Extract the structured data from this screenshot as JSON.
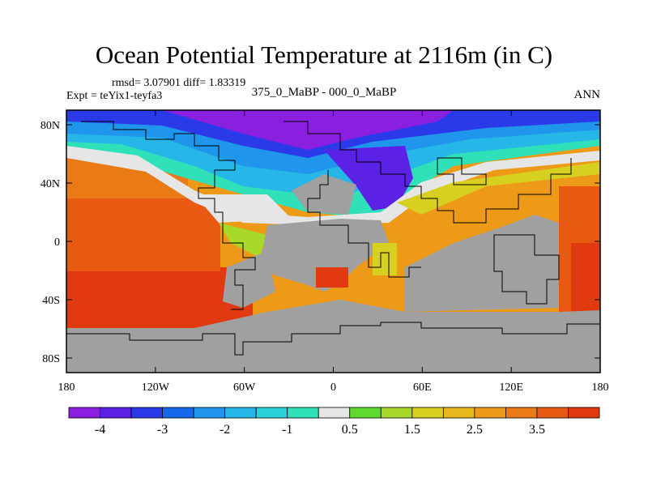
{
  "title": "Ocean Potential Temperature at 2116m (in C)",
  "stats_line": "rmsd= 3.07901 diff= 1.83319",
  "expt_line": "Expt = teYix1-teyfa3",
  "center_label": "375_0_MaBP - 000_0_MaBP",
  "right_label": "ANN",
  "lat_ticks": [
    {
      "value": 80,
      "label": "80N"
    },
    {
      "value": 40,
      "label": "40N"
    },
    {
      "value": 0,
      "label": "0"
    },
    {
      "value": -40,
      "label": "40S"
    },
    {
      "value": -80,
      "label": "80S"
    }
  ],
  "lon_ticks": [
    {
      "value": -180,
      "label": "180"
    },
    {
      "value": -120,
      "label": "120W"
    },
    {
      "value": -60,
      "label": "60W"
    },
    {
      "value": 0,
      "label": "0"
    },
    {
      "value": 60,
      "label": "60E"
    },
    {
      "value": 120,
      "label": "120E"
    },
    {
      "value": 180,
      "label": "180"
    }
  ],
  "colorbar": {
    "colors": [
      "#8a1fe0",
      "#5b22e6",
      "#2b3ae8",
      "#1668ea",
      "#1f95ec",
      "#26b7e8",
      "#2ad2d8",
      "#2fe0b8",
      "#e6e6e6",
      "#5fd830",
      "#a7d82a",
      "#d8d020",
      "#e8b81c",
      "#ec9a18",
      "#ea7a16",
      "#e85a12",
      "#e23a10"
    ],
    "labels": [
      {
        "after_bin": 1,
        "text": "-4"
      },
      {
        "after_bin": 3,
        "text": "-3"
      },
      {
        "after_bin": 5,
        "text": "-2"
      },
      {
        "after_bin": 7,
        "text": "-1"
      },
      {
        "after_bin": 9,
        "text": "0.5"
      },
      {
        "after_bin": 11,
        "text": "1.5"
      },
      {
        "after_bin": 13,
        "text": "2.5"
      },
      {
        "after_bin": 15,
        "text": "3.5"
      }
    ]
  },
  "land_color": "#a0a0a0",
  "colors": {
    "deep_purple": "#8a1fe0",
    "blue": "#2b3ae8",
    "cyan": "#26b7e8",
    "teal": "#2fe0b8",
    "near_zero": "#e6e6e6",
    "green": "#5fd830",
    "yellow_green": "#a7d82a",
    "yellow": "#d8d020",
    "orange": "#ec9a18",
    "orange_red": "#e85a12",
    "red": "#e23a10"
  }
}
